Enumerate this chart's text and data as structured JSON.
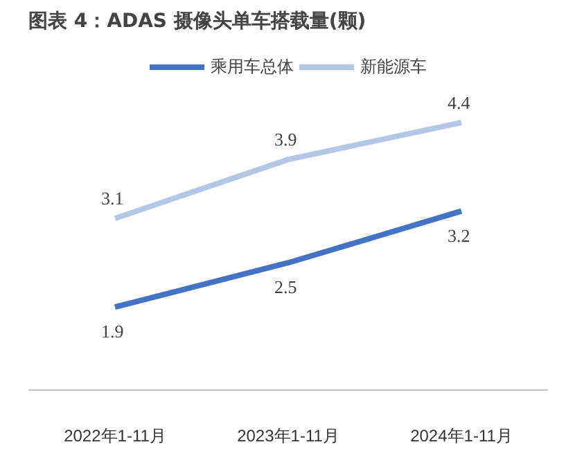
{
  "chart_data": {
    "type": "line",
    "title": "图表 4：ADAS 摄像头单车搭载量(颗)",
    "categories": [
      "2022年1-11月",
      "2023年1-11月",
      "2024年1-11月"
    ],
    "series": [
      {
        "name": "乘用车总体",
        "color": "#4472c4",
        "values": [
          1.9,
          2.5,
          3.2
        ]
      },
      {
        "name": "新能源车",
        "color": "#b4c7e7",
        "values": [
          3.1,
          3.9,
          4.4
        ]
      }
    ],
    "tick_labels": "x",
    "data_labels": true,
    "legend": "top",
    "grid": false,
    "marker": "none",
    "line_style": "solid"
  }
}
